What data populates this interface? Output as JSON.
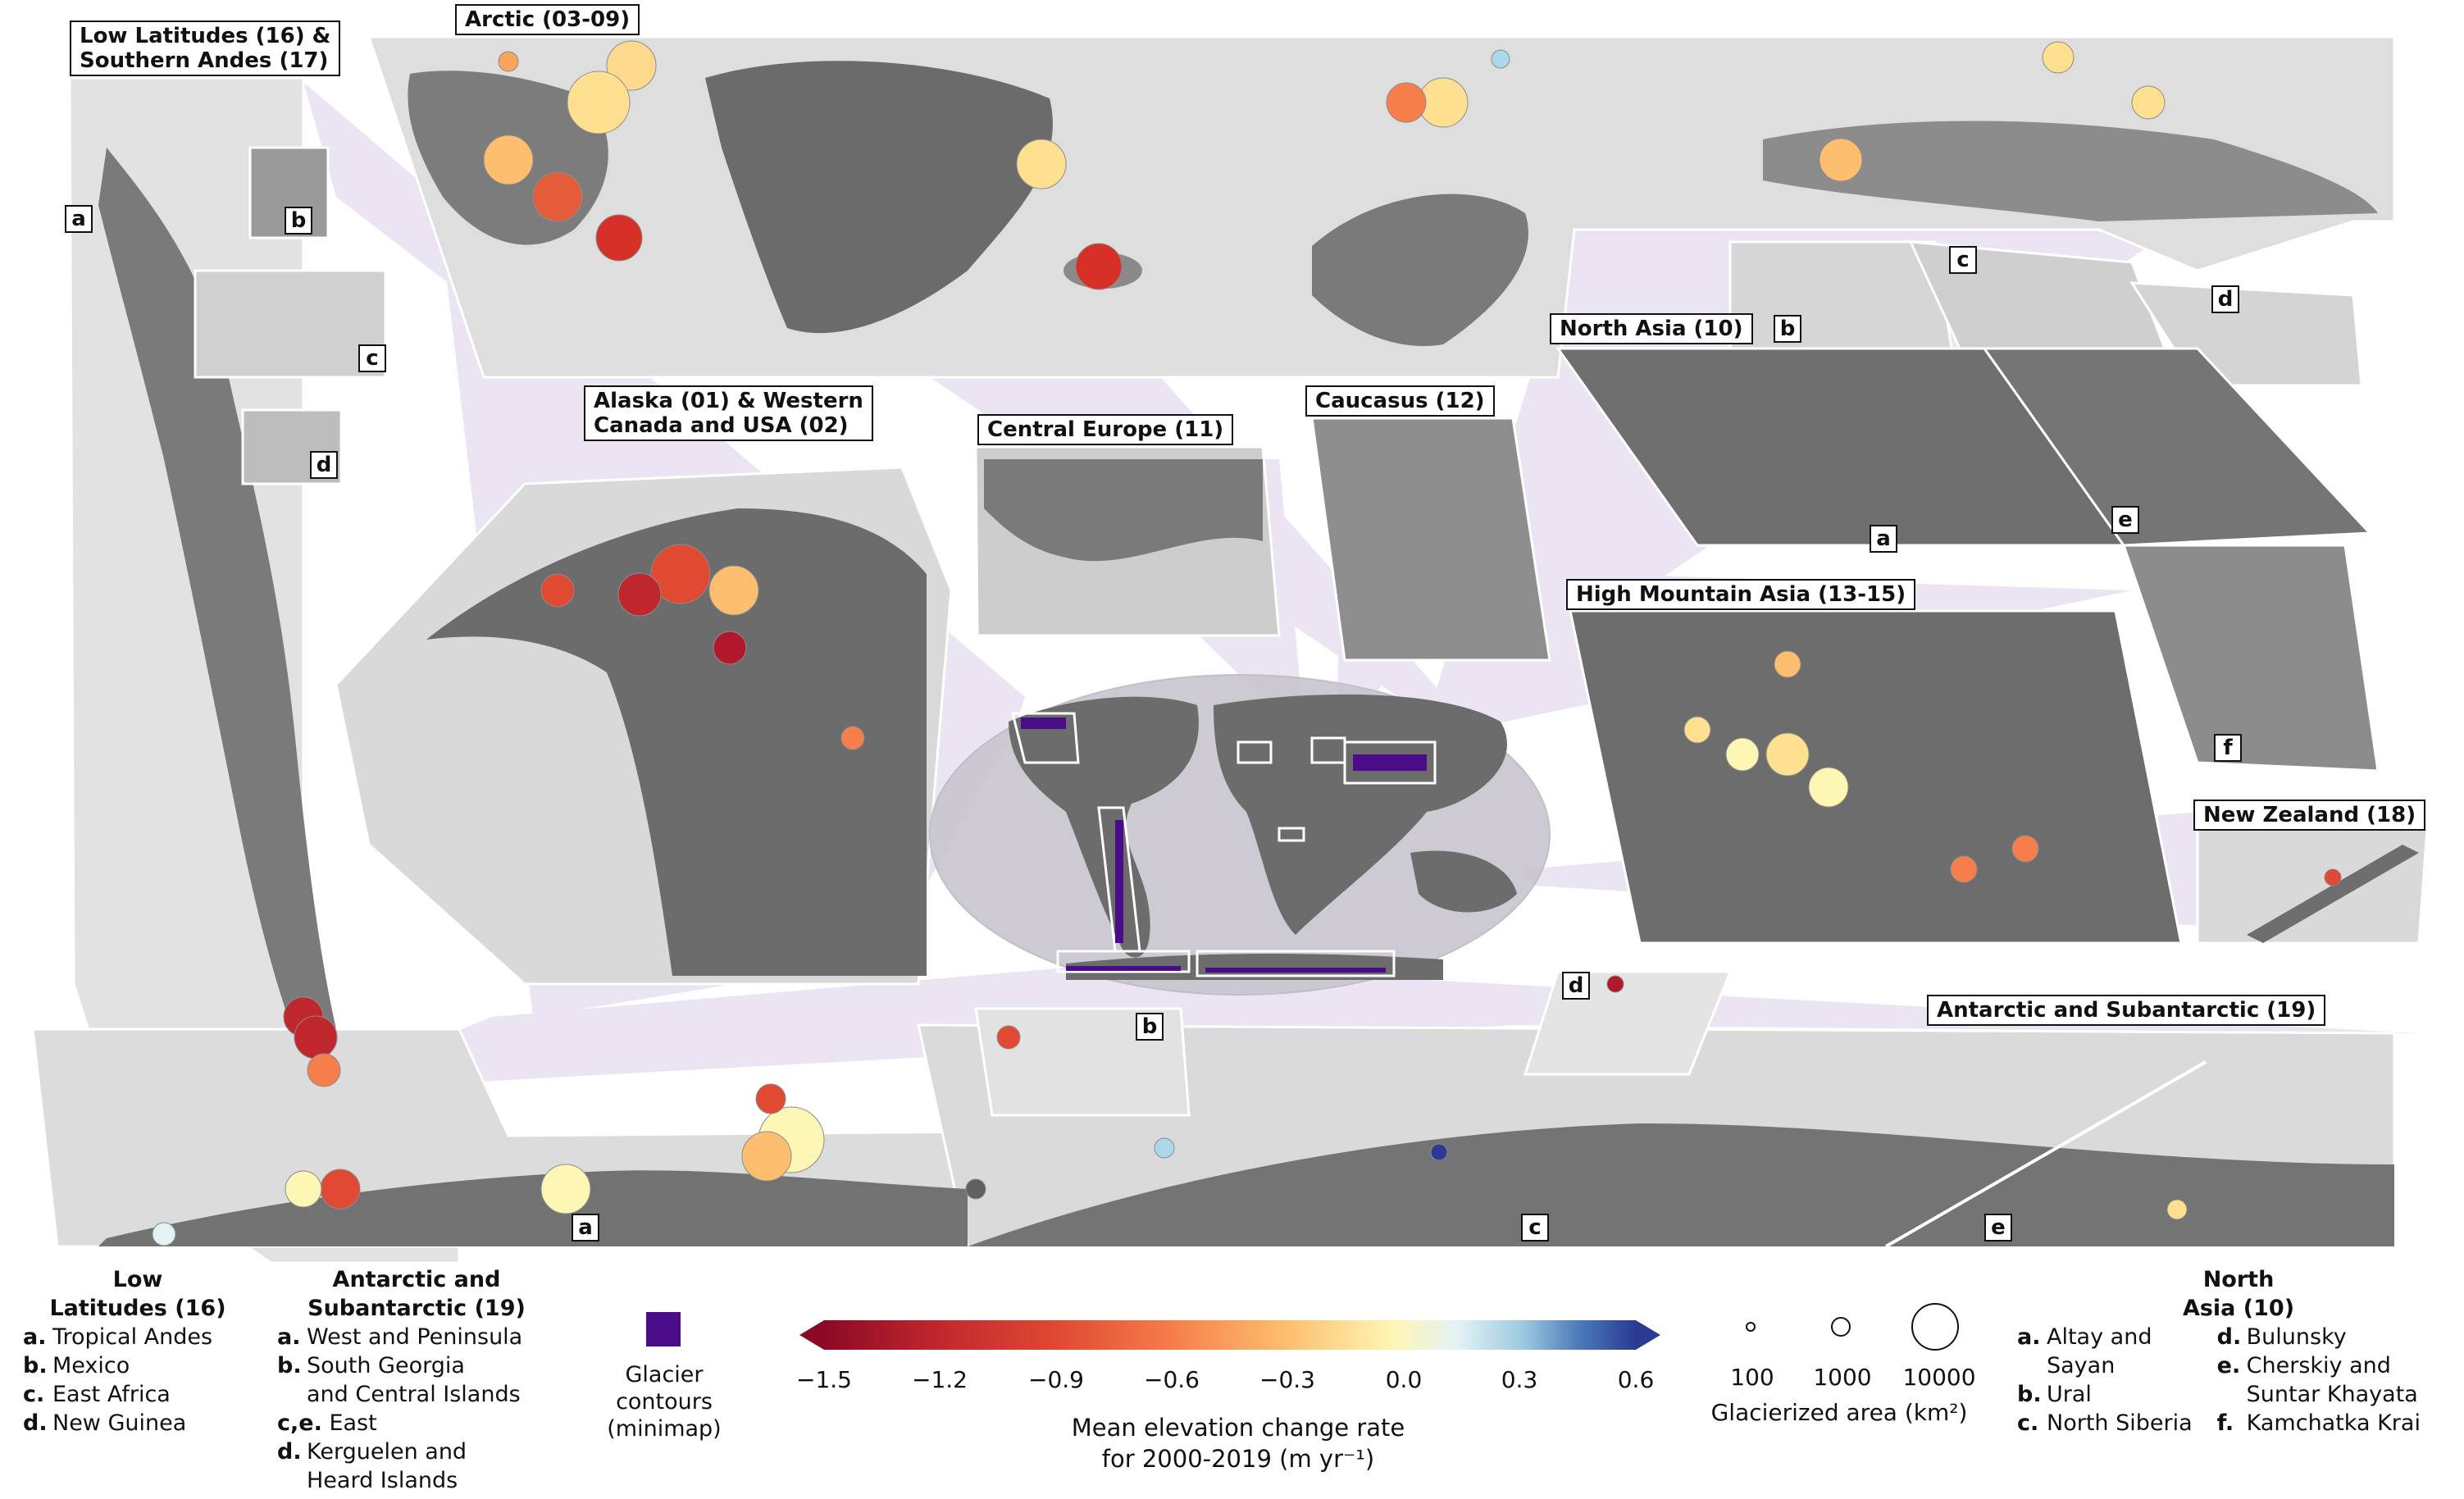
{
  "panels": {
    "low_latitudes_andes": "Low Latitudes (16) &\nSouthern Andes (17)",
    "arctic": "Arctic (03-09)",
    "alaska": "Alaska (01) & Western\nCanada and USA (02)",
    "central_europe": "Central Europe (11)",
    "caucasus": "Caucasus (12)",
    "north_asia": "North Asia (10)",
    "hma": "High Mountain Asia (13-15)",
    "new_zealand": "New Zealand (18)",
    "antarctic": "Antarctic and Subantarctic (19)"
  },
  "subpanel_tags": {
    "ll_a": "a",
    "ll_b": "b",
    "ll_c": "c",
    "ll_d": "d",
    "na_a": "a",
    "na_b": "b",
    "na_c": "c",
    "na_d": "d",
    "na_e": "e",
    "na_f": "f",
    "ant_a": "a",
    "ant_b": "b",
    "ant_c": "c",
    "ant_d": "d",
    "ant_e": "e"
  },
  "legend_low_latitudes": {
    "title": "Low\nLatitudes (16)",
    "items": [
      {
        "key": "a.",
        "text": "Tropical Andes"
      },
      {
        "key": "b.",
        "text": "Mexico"
      },
      {
        "key": "c.",
        "text": "East Africa"
      },
      {
        "key": "d.",
        "text": "New Guinea"
      }
    ]
  },
  "legend_antarctic": {
    "title": "Antarctic and\nSubantarctic (19)",
    "items": [
      {
        "key": "a.",
        "text": "West and Peninsula"
      },
      {
        "key": "b.",
        "text": "South Georgia\nand Central Islands"
      },
      {
        "key": "c,e.",
        "text": "East"
      },
      {
        "key": "d.",
        "text": "Kerguelen and\nHeard Islands"
      }
    ]
  },
  "legend_contours": {
    "label": "Glacier\ncontours\n(minimap)",
    "color": "#4b0c8a"
  },
  "colorbar": {
    "label": "Mean elevation change rate\nfor 2000-2019 (m yr⁻¹)",
    "min": -1.5,
    "max": 0.6,
    "ticks": [
      "−1.5",
      "−1.2",
      "−0.9",
      "−0.6",
      "−0.3",
      "0.0",
      "0.3",
      "0.6"
    ],
    "tick_values": [
      -1.5,
      -1.2,
      -0.9,
      -0.6,
      -0.3,
      0.0,
      0.3,
      0.6
    ],
    "colors": [
      "#67001f",
      "#b2182b",
      "#d6604d",
      "#f4a582",
      "#fee090",
      "#ffffbf",
      "#e0f3f8",
      "#abd9e9",
      "#4575b4",
      "#313695"
    ]
  },
  "size_legend": {
    "label": "Glacierized area (km²)",
    "values": [
      "100",
      "1000",
      "10000"
    ]
  },
  "legend_north_asia": {
    "title": "North\nAsia (10)",
    "items_left": [
      {
        "key": "a.",
        "text": "Altay and\nSayan"
      },
      {
        "key": "b.",
        "text": "Ural"
      },
      {
        "key": "c.",
        "text": "North Siberia"
      }
    ],
    "items_right": [
      {
        "key": "d.",
        "text": "Bulunsky"
      },
      {
        "key": "e.",
        "text": "Cherskiy and\nSuntar Khayata"
      },
      {
        "key": "f.",
        "text": "Kamchatka Krai"
      }
    ]
  }
}
